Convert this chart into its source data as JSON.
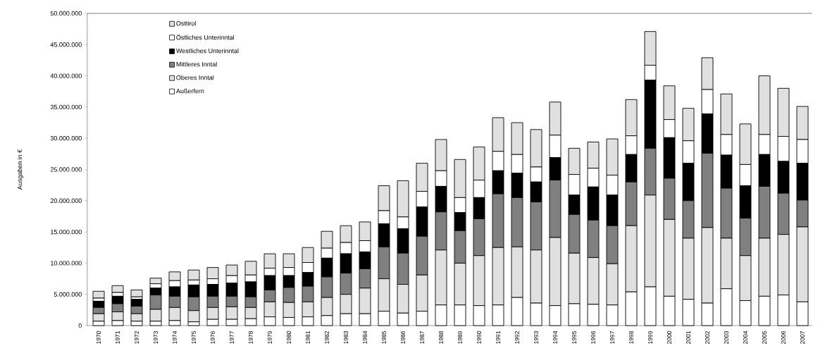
{
  "chart_data": {
    "type": "bar",
    "stacked": true,
    "ylabel": "Ausgaben in €",
    "categories": [
      "1970",
      "1971",
      "1972",
      "1973",
      "1974",
      "1975",
      "1976",
      "1977",
      "1978",
      "1979",
      "1980",
      "1981",
      "1982",
      "1983",
      "1984",
      "1985",
      "1986",
      "1987",
      "1988",
      "1989",
      "1990",
      "1991",
      "1992",
      "1993",
      "1994",
      "1995",
      "1996",
      "1997",
      "1998",
      "1999",
      "2000",
      "2001",
      "2002",
      "2003",
      "2004",
      "2005",
      "2006",
      "2007"
    ],
    "series": [
      {
        "name": "Außerfern",
        "color": "#ffffff",
        "values": [
          700000,
          800000,
          700000,
          700000,
          800000,
          600000,
          1000000,
          1000000,
          1100000,
          1400000,
          1300000,
          1400000,
          1600000,
          1900000,
          1900000,
          2300000,
          2000000,
          2300000,
          3300000,
          3300000,
          3200000,
          3300000,
          4500000,
          3600000,
          3200000,
          3500000,
          3400000,
          3300000,
          5400000,
          6200000,
          4700000,
          4200000,
          3600000,
          5900000,
          4000000,
          4700000,
          4900000,
          3800000
        ]
      },
      {
        "name": "Oberes Inntal",
        "color": "#e0e0e0",
        "values": [
          1200000,
          1400000,
          1200000,
          1900000,
          2100000,
          1800000,
          1900000,
          2000000,
          1800000,
          2400000,
          2400000,
          2400000,
          2900000,
          3100000,
          4100000,
          5200000,
          4600000,
          5800000,
          8800000,
          6700000,
          8000000,
          9200000,
          8100000,
          8500000,
          10900000,
          8100000,
          7500000,
          6600000,
          10600000,
          14700000,
          12300000,
          9800000,
          12100000,
          8100000,
          7200000,
          9300000,
          9700000,
          12000000
        ]
      },
      {
        "name": "Mittleres Inntal",
        "color": "#808080",
        "values": [
          1000000,
          1300000,
          1200000,
          2300000,
          1800000,
          2200000,
          1800000,
          1700000,
          1700000,
          1900000,
          2400000,
          2500000,
          3300000,
          3400000,
          3100000,
          5100000,
          5000000,
          6200000,
          6100000,
          5200000,
          5900000,
          8600000,
          7900000,
          7700000,
          9200000,
          6200000,
          6000000,
          6100000,
          7000000,
          7500000,
          6600000,
          6000000,
          11900000,
          8000000,
          6000000,
          8300000,
          6600000,
          4300000
        ]
      },
      {
        "name": "Westliches Unterinntal",
        "color": "#000000",
        "values": [
          1000000,
          1200000,
          1100000,
          1100000,
          1500000,
          1900000,
          1900000,
          2100000,
          2400000,
          2300000,
          1900000,
          2200000,
          3000000,
          3100000,
          2700000,
          3700000,
          3900000,
          4700000,
          4100000,
          2900000,
          3400000,
          3700000,
          3900000,
          3200000,
          3600000,
          3100000,
          5300000,
          4900000,
          4400000,
          10900000,
          6500000,
          6000000,
          6300000,
          5300000,
          5200000,
          5100000,
          5100000,
          5900000
        ]
      },
      {
        "name": "Östliches Unterinntal",
        "color": "#ffffff",
        "values": [
          500000,
          600000,
          400000,
          700000,
          1000000,
          800000,
          900000,
          1200000,
          1100000,
          1200000,
          1300000,
          1600000,
          1600000,
          1800000,
          1800000,
          2100000,
          1900000,
          2500000,
          2500000,
          2400000,
          2800000,
          3100000,
          3000000,
          2400000,
          3600000,
          3300000,
          3000000,
          3200000,
          3000000,
          2400000,
          2900000,
          3600000,
          3900000,
          3300000,
          3400000,
          3200000,
          4000000,
          3800000
        ]
      },
      {
        "name": "Osttirol",
        "color": "#e0e0e0",
        "values": [
          1100000,
          1100000,
          1100000,
          900000,
          1400000,
          1600000,
          1800000,
          1700000,
          2200000,
          2300000,
          2200000,
          2400000,
          2700000,
          2700000,
          3000000,
          4000000,
          5800000,
          4500000,
          5000000,
          6100000,
          5300000,
          5400000,
          5100000,
          6000000,
          5300000,
          4200000,
          4200000,
          5800000,
          5800000,
          5400000,
          5400000,
          5200000,
          5100000,
          6500000,
          6500000,
          9400000,
          7700000,
          5300000
        ]
      }
    ],
    "ylim": [
      0,
      50000000
    ],
    "yticks": [
      0,
      {
        "value": 5000000,
        "label": "5.000.000"
      },
      {
        "value": 10000000,
        "label": "10.000.000"
      },
      {
        "value": 15000000,
        "label": "15.000.000"
      },
      {
        "value": 20000000,
        "label": "20.000.000"
      },
      {
        "value": 25000000,
        "label": "25.000.000"
      },
      {
        "value": 30000000,
        "label": "30.000.000"
      },
      {
        "value": 35000000,
        "label": "35.000.000"
      },
      {
        "value": 40000000,
        "label": "40.000.000"
      },
      {
        "value": 45000000,
        "label": "45.000.000"
      },
      {
        "value": 50000000,
        "label": "50.000.000"
      }
    ],
    "legend": "top left",
    "grid": false
  }
}
